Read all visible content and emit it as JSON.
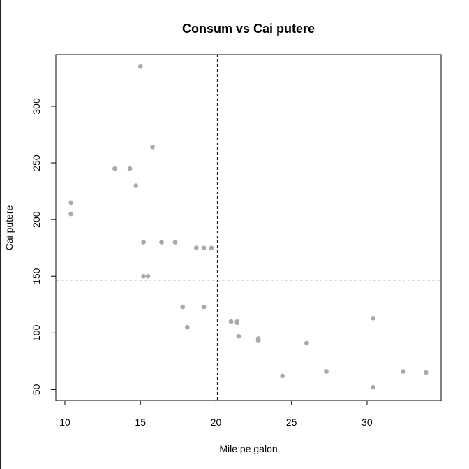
{
  "chart_data": {
    "type": "scatter",
    "title": "Consum vs Cai putere",
    "xlabel": "Mile pe galon",
    "ylabel": "Cai putere",
    "xlim": [
      9.4,
      34.9
    ],
    "ylim": [
      40.4,
      345.6
    ],
    "x_ticks": [
      10,
      15,
      20,
      25,
      30
    ],
    "y_ticks": [
      50,
      100,
      150,
      200,
      250,
      300
    ],
    "grid": false,
    "legend": "none",
    "point_color": "#a9a9a9",
    "reference_lines": {
      "vertical_x": 20.09,
      "horizontal_y": 146.7,
      "style": "dashed"
    },
    "points": [
      {
        "x": 21.0,
        "y": 110
      },
      {
        "x": 21.0,
        "y": 110
      },
      {
        "x": 22.8,
        "y": 93
      },
      {
        "x": 21.4,
        "y": 110
      },
      {
        "x": 18.7,
        "y": 175
      },
      {
        "x": 18.1,
        "y": 105
      },
      {
        "x": 14.3,
        "y": 245
      },
      {
        "x": 24.4,
        "y": 62
      },
      {
        "x": 22.8,
        "y": 95
      },
      {
        "x": 19.2,
        "y": 123
      },
      {
        "x": 17.8,
        "y": 123
      },
      {
        "x": 16.4,
        "y": 180
      },
      {
        "x": 17.3,
        "y": 180
      },
      {
        "x": 15.2,
        "y": 180
      },
      {
        "x": 10.4,
        "y": 205
      },
      {
        "x": 10.4,
        "y": 215
      },
      {
        "x": 14.7,
        "y": 230
      },
      {
        "x": 32.4,
        "y": 66
      },
      {
        "x": 30.4,
        "y": 52
      },
      {
        "x": 33.9,
        "y": 65
      },
      {
        "x": 21.5,
        "y": 97
      },
      {
        "x": 15.5,
        "y": 150
      },
      {
        "x": 15.2,
        "y": 150
      },
      {
        "x": 13.3,
        "y": 245
      },
      {
        "x": 19.2,
        "y": 175
      },
      {
        "x": 27.3,
        "y": 66
      },
      {
        "x": 26.0,
        "y": 91
      },
      {
        "x": 30.4,
        "y": 113
      },
      {
        "x": 15.8,
        "y": 264
      },
      {
        "x": 19.7,
        "y": 175
      },
      {
        "x": 15.0,
        "y": 335
      },
      {
        "x": 21.4,
        "y": 109
      }
    ]
  }
}
